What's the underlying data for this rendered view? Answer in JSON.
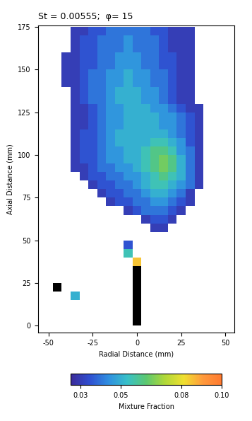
{
  "chart_data": {
    "type": "heatmap",
    "title": "St = 0.00555;  φ= 15",
    "x_label": "Radial Distance (mm)",
    "y_label": "Axial Distance (mm)",
    "colorbar_label": "Mixture Fraction",
    "xlim": [
      -56,
      55
    ],
    "ylim": [
      -4,
      176
    ],
    "xticks": [
      -50,
      -25,
      0,
      25,
      50
    ],
    "yticks": [
      0,
      25,
      50,
      75,
      100,
      125,
      150,
      175
    ],
    "colorbar_range": [
      0.025,
      0.1
    ],
    "colorbar_ticks": [
      0.03,
      0.05,
      0.08,
      {
        "value": 0.1,
        "label": "0.10"
      }
    ],
    "grid": false,
    "x": [
      -55,
      -50,
      -45,
      -40,
      -35,
      -30,
      -25,
      -20,
      -15,
      -10,
      -5,
      0,
      5,
      10,
      15,
      20,
      25,
      30,
      35,
      40,
      45,
      50
    ],
    "y": [
      2.5,
      7.5,
      12.5,
      17.5,
      22.5,
      27.5,
      32.5,
      37.5,
      42.5,
      47.5,
      52.5,
      57.5,
      62.5,
      67.5,
      72.5,
      77.5,
      82.5,
      87.5,
      92.5,
      97.5,
      102.5,
      107.5,
      112.5,
      117.5,
      122.5,
      127.5,
      132.5,
      137.5,
      142.5,
      147.5,
      152.5,
      157.5,
      162.5,
      167.5,
      172.5
    ],
    "cells": [
      [
        null,
        null,
        null,
        null,
        null,
        null,
        null,
        null,
        null,
        null,
        null,
        0.15,
        null,
        null,
        null,
        null,
        null,
        null,
        null,
        null,
        null,
        null
      ],
      [
        null,
        null,
        null,
        null,
        null,
        null,
        null,
        null,
        null,
        null,
        null,
        0.15,
        null,
        null,
        null,
        null,
        null,
        null,
        null,
        null,
        null,
        null
      ],
      [
        null,
        null,
        null,
        null,
        null,
        null,
        null,
        null,
        null,
        null,
        null,
        0.15,
        null,
        null,
        null,
        null,
        null,
        null,
        null,
        null,
        null,
        null
      ],
      [
        null,
        null,
        null,
        null,
        0.05,
        null,
        null,
        null,
        null,
        null,
        null,
        0.15,
        null,
        null,
        null,
        null,
        null,
        null,
        null,
        null,
        null,
        null
      ],
      [
        null,
        null,
        0.15,
        null,
        null,
        null,
        null,
        null,
        null,
        null,
        null,
        0.15,
        null,
        null,
        null,
        null,
        null,
        null,
        null,
        null,
        null,
        null
      ],
      [
        null,
        null,
        null,
        null,
        null,
        null,
        null,
        null,
        null,
        null,
        null,
        0.15,
        null,
        null,
        null,
        null,
        null,
        null,
        null,
        null,
        null,
        null
      ],
      [
        null,
        null,
        null,
        null,
        null,
        null,
        null,
        null,
        null,
        null,
        null,
        0.15,
        null,
        null,
        null,
        null,
        null,
        null,
        null,
        null,
        null,
        null
      ],
      [
        null,
        null,
        null,
        null,
        null,
        null,
        null,
        null,
        null,
        null,
        null,
        0.085,
        null,
        null,
        null,
        null,
        null,
        null,
        null,
        null,
        null,
        null
      ],
      [
        null,
        null,
        null,
        null,
        null,
        null,
        null,
        null,
        null,
        null,
        0.055,
        null,
        null,
        null,
        null,
        null,
        null,
        null,
        null,
        null,
        null,
        null
      ],
      [
        null,
        null,
        null,
        null,
        null,
        null,
        null,
        null,
        null,
        null,
        0.035,
        null,
        null,
        null,
        null,
        null,
        null,
        null,
        null,
        null,
        null,
        null
      ],
      [
        null,
        null,
        null,
        null,
        null,
        null,
        null,
        null,
        null,
        null,
        null,
        null,
        null,
        null,
        null,
        null,
        null,
        null,
        null,
        null,
        null,
        null
      ],
      [
        null,
        null,
        null,
        null,
        null,
        null,
        null,
        null,
        null,
        null,
        null,
        null,
        null,
        0.03,
        0.03,
        null,
        null,
        null,
        null,
        null,
        null,
        null
      ],
      [
        null,
        null,
        null,
        null,
        null,
        null,
        null,
        null,
        null,
        null,
        null,
        null,
        0.03,
        0.035,
        0.035,
        0.03,
        null,
        null,
        null,
        null,
        null,
        null
      ],
      [
        null,
        null,
        null,
        null,
        null,
        null,
        null,
        null,
        null,
        null,
        0.03,
        0.035,
        0.04,
        0.04,
        0.04,
        0.035,
        0.03,
        null,
        null,
        null,
        null,
        null
      ],
      [
        null,
        null,
        null,
        null,
        null,
        null,
        null,
        null,
        0.03,
        0.035,
        0.035,
        0.04,
        0.04,
        0.045,
        0.045,
        0.04,
        0.035,
        0.03,
        null,
        null,
        null,
        null
      ],
      [
        null,
        null,
        null,
        null,
        null,
        null,
        null,
        0.03,
        0.035,
        0.035,
        0.04,
        0.04,
        0.045,
        0.05,
        0.05,
        0.045,
        0.04,
        0.03,
        null,
        null,
        null,
        null
      ],
      [
        null,
        null,
        null,
        null,
        null,
        null,
        0.03,
        0.035,
        0.035,
        0.04,
        0.04,
        0.045,
        0.05,
        0.055,
        0.055,
        0.05,
        0.045,
        0.04,
        0.03,
        null,
        null,
        null
      ],
      [
        null,
        null,
        null,
        null,
        null,
        0.03,
        0.035,
        0.035,
        0.04,
        0.04,
        0.045,
        0.045,
        0.05,
        0.055,
        0.06,
        0.055,
        0.05,
        0.04,
        0.03,
        null,
        null,
        null
      ],
      [
        null,
        null,
        null,
        null,
        0.03,
        0.03,
        0.035,
        0.04,
        0.04,
        0.045,
        0.045,
        0.05,
        0.055,
        0.06,
        0.065,
        0.06,
        0.05,
        0.04,
        0.03,
        null,
        null,
        null
      ],
      [
        null,
        null,
        null,
        null,
        0.03,
        0.035,
        0.035,
        0.04,
        0.045,
        0.045,
        0.05,
        0.05,
        0.055,
        0.06,
        0.065,
        0.06,
        0.05,
        0.04,
        0.03,
        null,
        null,
        null
      ],
      [
        null,
        null,
        null,
        null,
        0.03,
        0.035,
        0.035,
        0.04,
        0.045,
        0.045,
        0.05,
        0.05,
        0.055,
        0.06,
        0.06,
        0.055,
        0.045,
        0.04,
        0.03,
        null,
        null,
        null
      ],
      [
        null,
        null,
        null,
        null,
        0.03,
        0.035,
        0.035,
        0.04,
        0.045,
        0.05,
        0.05,
        0.05,
        0.05,
        0.055,
        0.055,
        0.05,
        0.045,
        0.035,
        0.03,
        null,
        null,
        null
      ],
      [
        null,
        null,
        null,
        null,
        0.03,
        0.035,
        0.035,
        0.04,
        0.045,
        0.05,
        0.05,
        0.05,
        0.05,
        0.05,
        0.05,
        0.045,
        0.04,
        0.035,
        0.03,
        null,
        null,
        null
      ],
      [
        null,
        null,
        null,
        null,
        0.03,
        0.03,
        0.035,
        0.04,
        0.045,
        0.045,
        0.05,
        0.05,
        0.05,
        0.05,
        0.045,
        0.045,
        0.04,
        0.035,
        0.03,
        null,
        null,
        null
      ],
      [
        null,
        null,
        null,
        null,
        0.03,
        0.03,
        0.035,
        0.04,
        0.045,
        0.045,
        0.05,
        0.05,
        0.05,
        0.05,
        0.045,
        0.045,
        0.04,
        0.035,
        0.03,
        null,
        null,
        null
      ],
      [
        null,
        null,
        null,
        null,
        0.03,
        0.03,
        0.035,
        0.04,
        0.045,
        0.045,
        0.05,
        0.05,
        0.05,
        0.045,
        0.045,
        0.04,
        0.035,
        0.03,
        0.03,
        null,
        null,
        null
      ],
      [
        null,
        null,
        null,
        null,
        0.03,
        0.035,
        0.04,
        0.04,
        0.045,
        0.05,
        0.05,
        0.05,
        0.045,
        0.045,
        0.04,
        0.035,
        0.03,
        0.03,
        null,
        null,
        null,
        null
      ],
      [
        null,
        null,
        null,
        null,
        0.03,
        0.035,
        0.04,
        0.04,
        0.045,
        0.05,
        0.05,
        0.05,
        0.045,
        0.045,
        0.04,
        0.035,
        0.03,
        0.03,
        null,
        null,
        null,
        null
      ],
      [
        null,
        null,
        null,
        0.03,
        0.03,
        0.035,
        0.04,
        0.04,
        0.045,
        0.045,
        0.05,
        0.045,
        0.045,
        0.04,
        0.04,
        0.035,
        0.03,
        0.03,
        null,
        null,
        null,
        null
      ],
      [
        null,
        null,
        null,
        0.03,
        0.03,
        0.035,
        0.04,
        0.04,
        0.045,
        0.045,
        0.05,
        0.045,
        0.045,
        0.04,
        0.04,
        0.035,
        0.03,
        0.03,
        null,
        null,
        null,
        null
      ],
      [
        null,
        null,
        null,
        0.03,
        0.03,
        0.035,
        0.035,
        0.04,
        0.04,
        0.045,
        0.045,
        0.045,
        0.04,
        0.04,
        0.035,
        0.035,
        0.03,
        0.03,
        null,
        null,
        null,
        null
      ],
      [
        null,
        null,
        null,
        0.03,
        0.03,
        0.035,
        0.035,
        0.04,
        0.04,
        0.045,
        0.045,
        0.045,
        0.04,
        0.04,
        0.035,
        0.035,
        0.03,
        0.03,
        null,
        null,
        null,
        null
      ],
      [
        null,
        null,
        null,
        null,
        0.03,
        0.035,
        0.035,
        0.04,
        0.04,
        0.04,
        0.045,
        0.04,
        0.04,
        0.04,
        0.035,
        0.03,
        0.03,
        0.03,
        null,
        null,
        null,
        null
      ],
      [
        null,
        null,
        null,
        null,
        0.03,
        0.035,
        0.035,
        0.04,
        0.04,
        0.04,
        0.045,
        0.04,
        0.04,
        0.04,
        0.035,
        0.03,
        0.03,
        0.03,
        null,
        null,
        null,
        null
      ],
      [
        null,
        null,
        null,
        null,
        0.03,
        0.03,
        0.035,
        0.035,
        0.04,
        0.04,
        0.04,
        0.04,
        0.04,
        0.035,
        0.035,
        0.03,
        0.03,
        0.03,
        null,
        null,
        null,
        null
      ]
    ]
  }
}
